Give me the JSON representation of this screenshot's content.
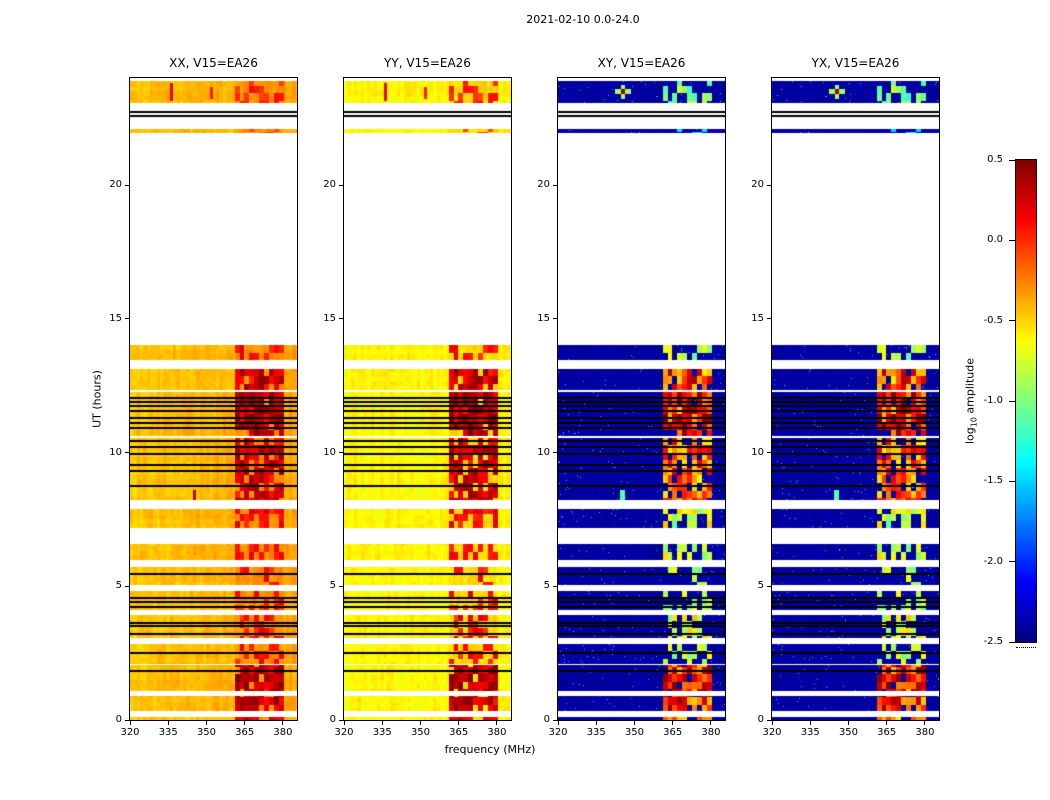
{
  "chart_data": {
    "type": "heatmap",
    "title": "2021-02-10 0.0-24.0",
    "xlabel": "frequency (MHz)",
    "ylabel": "UT (hours)",
    "x_range": [
      320,
      385.5
    ],
    "y_range": [
      0,
      24
    ],
    "x_tick_labels": [
      "320",
      "335",
      "350",
      "365",
      "380"
    ],
    "y_tick_labels": [
      "0",
      "5",
      "10",
      "15",
      "20"
    ],
    "colormap": "jet",
    "vmin": -2.5,
    "vmax": 0.5,
    "grid": false,
    "panels": [
      {
        "title": "XX, V15=EA26",
        "pol": "parallel",
        "base_level": -0.46
      },
      {
        "title": "YY, V15=EA26",
        "pol": "parallel",
        "base_level": -0.6
      },
      {
        "title": "XY, V15=EA26",
        "pol": "cross",
        "base_level": -2.4
      },
      {
        "title": "YX, V15=EA26",
        "pol": "cross",
        "base_level": -2.4
      }
    ],
    "rfi_band_mhz": [
      361,
      380.5
    ],
    "segments_format": "[start_ut_hours, end_ut_hours, rfi_intensity_0_to_1]",
    "time_segments": [
      [
        0.0,
        0.12,
        0.85
      ],
      [
        0.32,
        0.88,
        1.0
      ],
      [
        1.1,
        2.06,
        1.0
      ],
      [
        2.1,
        2.85,
        0.5
      ],
      [
        3.06,
        3.93,
        0.55
      ],
      [
        4.1,
        4.83,
        0.5
      ],
      [
        5.04,
        5.73,
        0.45
      ],
      [
        5.97,
        6.58,
        0.5
      ],
      [
        7.17,
        7.9,
        0.55
      ],
      [
        8.22,
        10.55,
        0.85
      ],
      [
        10.6,
        12.28,
        1.0
      ],
      [
        12.33,
        13.13,
        0.9
      ],
      [
        13.46,
        14.02,
        0.5
      ],
      [
        21.95,
        22.08,
        0.15
      ],
      [
        23.05,
        23.88,
        0.4
      ]
    ],
    "flagged_lines_ut": [
      1.85,
      2.52,
      3.2,
      3.5,
      3.64,
      4.24,
      4.4,
      4.56,
      5.45,
      8.74,
      9.3,
      9.55,
      9.95,
      10.2,
      10.44,
      10.9,
      11.1,
      11.3,
      11.55,
      11.72,
      11.9,
      12.05,
      22.58,
      22.72
    ],
    "artifacts": [
      {
        "panels": [
          0
        ],
        "f": [
          344.8,
          345.9
        ],
        "t": [
          8.12,
          8.6
        ],
        "v": 0.3
      },
      {
        "panels": [
          2,
          3
        ],
        "f": [
          344.3,
          346.4
        ],
        "t": [
          8.12,
          8.6
        ],
        "v": -1.1
      },
      {
        "panels": [
          0,
          1
        ],
        "f": [
          335.7,
          336.7
        ],
        "t": [
          23.15,
          23.8
        ],
        "v": 0.18
      },
      {
        "panels": [
          0,
          1
        ],
        "f": [
          351.5,
          352.7
        ],
        "t": [
          23.2,
          23.68
        ],
        "v": 0.05
      },
      {
        "panels": [
          2,
          3
        ],
        "f": [
          344.9,
          346.2
        ],
        "t": [
          23.22,
          23.74
        ],
        "v": -0.9
      },
      {
        "panels": [
          2,
          3
        ],
        "f": [
          342.3,
          348.7
        ],
        "t": [
          23.42,
          23.58
        ],
        "v": -0.9
      },
      {
        "panels": [
          2,
          3
        ],
        "f": [
          344.9,
          346.2
        ],
        "t": [
          23.42,
          23.58
        ],
        "v": 0.4
      }
    ],
    "colorbar": {
      "label_prefix": "log",
      "label_sub": "10",
      "label_suffix": " amplitude",
      "tick_labels": [
        "0.5",
        "0.0",
        "-0.5",
        "-1.0",
        "-1.5",
        "-2.0",
        "-2.5"
      ]
    }
  }
}
